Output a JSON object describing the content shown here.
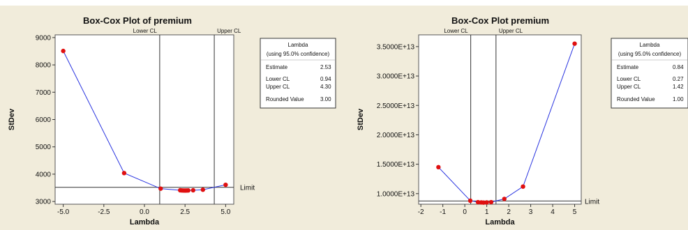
{
  "chart_data": [
    {
      "type": "line",
      "title": "Box-Cox Plot of premium",
      "xlabel": "Lambda",
      "ylabel": "StDev",
      "xlim": [
        -5.5,
        5.5
      ],
      "ylim": [
        2900,
        9100
      ],
      "xticks": [
        "-5.0",
        "-2.5",
        "0.0",
        "2.5",
        "5.0"
      ],
      "xtick_values": [
        -5.0,
        -2.5,
        0.0,
        2.5,
        5.0
      ],
      "yticks": [
        "3000",
        "4000",
        "5000",
        "6000",
        "7000",
        "8000",
        "9000"
      ],
      "ytick_values": [
        3000,
        4000,
        5000,
        6000,
        7000,
        8000,
        9000
      ],
      "lower_cl_label": "Lower CL",
      "upper_cl_label": "Upper CL",
      "lower_cl": 0.94,
      "upper_cl": 4.3,
      "limit_label": "Limit",
      "limit": 3520,
      "series": [
        {
          "x": [
            -5.0,
            -1.25,
            1.0,
            2.2,
            2.3,
            2.4,
            2.5,
            2.6,
            2.7,
            3.0,
            3.6,
            5.0
          ],
          "y": [
            8510,
            4040,
            3470,
            3410,
            3405,
            3402,
            3401,
            3402,
            3405,
            3410,
            3430,
            3610
          ]
        }
      ],
      "line_color": "#2a35e0",
      "point_color": "#e01010",
      "legend": {
        "title": "Lambda",
        "subtitle": "(using 95.0% confidence)",
        "rows": [
          {
            "label": "Estimate",
            "value": "2.53"
          },
          {
            "label": "Lower CL",
            "value": "0.94"
          },
          {
            "label": "Upper CL",
            "value": "4.30"
          },
          {
            "label": "Rounded Value",
            "value": "3.00"
          }
        ]
      }
    },
    {
      "type": "line",
      "title": "Box-Cox Plot premium",
      "xlabel": "Lambda",
      "ylabel": "StDev",
      "xlim": [
        -2.1,
        5.3
      ],
      "ylim": [
        8200000000000.0,
        37000000000000.0
      ],
      "xticks": [
        "-2",
        "-1",
        "0",
        "1",
        "2",
        "3",
        "4",
        "5"
      ],
      "xtick_values": [
        -2,
        -1,
        0,
        1,
        2,
        3,
        4,
        5
      ],
      "yticks": [
        "1.0000E+13",
        "1.5000E+13",
        "2.0000E+13",
        "2.5000E+13",
        "3.0000E+13",
        "3.5000E+13"
      ],
      "ytick_values": [
        10000000000000.0,
        15000000000000.0,
        20000000000000.0,
        25000000000000.0,
        30000000000000.0,
        35000000000000.0
      ],
      "lower_cl_label": "Lower CL",
      "upper_cl_label": "Upper CL",
      "lower_cl": 0.27,
      "upper_cl": 1.42,
      "limit_label": "Limit",
      "limit": 8750000000000.0,
      "series": [
        {
          "x": [
            -1.2,
            0.25,
            0.6,
            0.75,
            0.85,
            1.0,
            1.2,
            1.8,
            2.65,
            5.0
          ],
          "y": [
            14500000000000.0,
            8800000000000.0,
            8550000000000.0,
            8500000000000.0,
            8480000000000.0,
            8500000000000.0,
            8550000000000.0,
            9100000000000.0,
            11200000000000.0,
            35500000000000.0
          ]
        }
      ],
      "line_color": "#2a35e0",
      "point_color": "#e01010",
      "legend": {
        "title": "Lambda",
        "subtitle": "(using 95.0% confidence)",
        "rows": [
          {
            "label": "Estimate",
            "value": "0.84"
          },
          {
            "label": "Lower CL",
            "value": "0.27"
          },
          {
            "label": "Upper CL",
            "value": "1.42"
          },
          {
            "label": "Rounded Value",
            "value": "1.00"
          }
        ]
      }
    }
  ]
}
